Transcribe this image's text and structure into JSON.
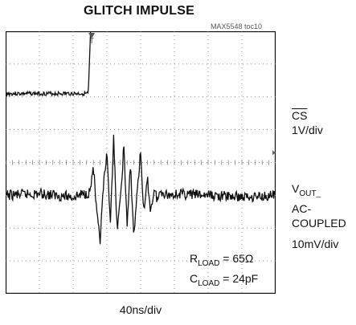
{
  "header": {
    "title": "GLITCH IMPULSE",
    "part_id": "MAX5548 toc10"
  },
  "traces": {
    "cs": {
      "name": "CS",
      "scale": "1V/div",
      "marker": "T"
    },
    "vout": {
      "name_main": "V",
      "name_sub": "OUT_",
      "coupling": "AC-COUPLED",
      "scale": "10mV/div"
    }
  },
  "timebase": "40ns/div",
  "conditions": {
    "rload_main": "R",
    "rload_sub": "LOAD",
    "rload_value": " = 65Ω",
    "cload_main": "C",
    "cload_sub": "LOAD",
    "cload_value": " = 24pF"
  },
  "chart_data": {
    "type": "line",
    "title": "GLITCH IMPULSE",
    "xlabel": "40ns/div",
    "grid": true,
    "x_divisions": 8,
    "y_divisions": 8,
    "series": [
      {
        "name": "CS",
        "scale": "1V/div",
        "x_div": [
          0,
          2.45,
          2.55,
          2.7,
          3.0,
          3.5,
          4.0,
          5.0,
          6.0,
          7.0,
          8.0
        ],
        "y_div": [
          -0.2,
          -0.2,
          2.6,
          2.65,
          2.45,
          2.5,
          2.5,
          2.5,
          2.5,
          2.5,
          2.5
        ]
      },
      {
        "name": "VOUT_ AC-COUPLED",
        "scale": "10mV/div",
        "x_div": [
          0,
          1.0,
          2.0,
          2.5,
          2.6,
          2.7,
          2.8,
          2.9,
          3.0,
          3.1,
          3.2,
          3.3,
          3.4,
          3.5,
          3.6,
          3.7,
          3.8,
          3.9,
          4.0,
          4.1,
          4.2,
          4.3,
          4.4,
          4.5,
          4.6,
          4.8,
          5.0,
          6.0,
          7.0,
          8.0
        ],
        "y_div": [
          0,
          0.05,
          -0.05,
          0.1,
          0.9,
          -0.6,
          -1.4,
          0.3,
          1.2,
          -0.8,
          1.7,
          -1.0,
          -0.2,
          1.5,
          -0.9,
          0.9,
          -1.3,
          0.2,
          1.3,
          -0.6,
          0.5,
          -0.5,
          0.2,
          -0.15,
          0.15,
          0.0,
          0.05,
          0.0,
          -0.05,
          0.0
        ]
      }
    ]
  }
}
